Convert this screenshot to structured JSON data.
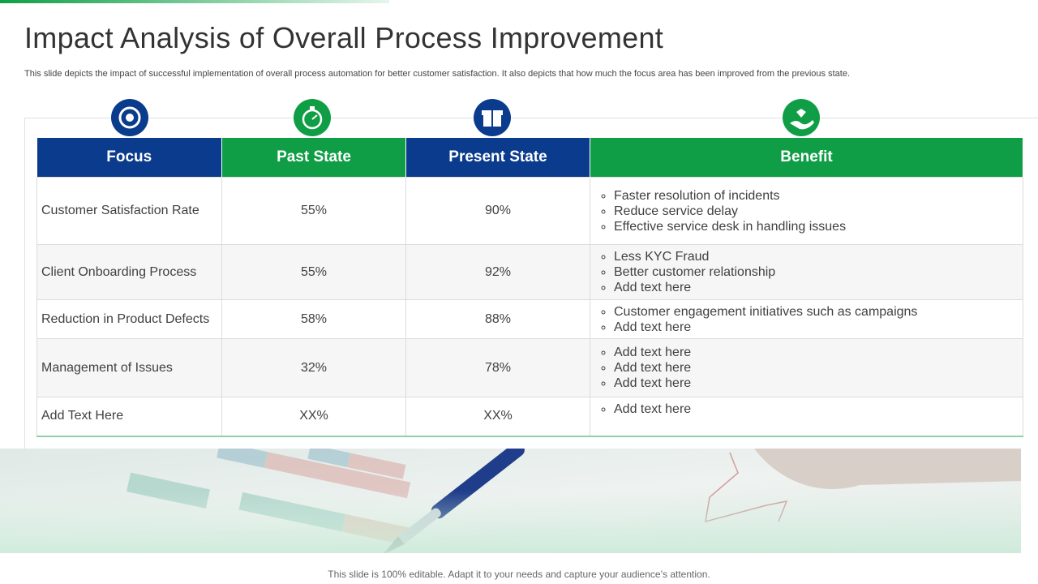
{
  "header": {
    "title": "Impact Analysis of Overall Process Improvement",
    "subtitle": "This slide depicts the impact of successful implementation of overall process automation for better customer satisfaction.  It also depicts that how much the focus area has been improved from the previous state."
  },
  "table": {
    "columns": [
      "Focus",
      "Past State",
      "Present State",
      "Benefit"
    ],
    "rows": [
      {
        "focus": "Customer Satisfaction Rate",
        "past": "55%",
        "present": "90%",
        "benefits": [
          "Faster resolution of incidents",
          "Reduce service delay",
          "Effective service desk in handling issues"
        ]
      },
      {
        "focus": "Client Onboarding Process",
        "past": "55%",
        "present": "92%",
        "benefits": [
          "Less KYC Fraud",
          "Better customer relationship",
          "Add text here"
        ]
      },
      {
        "focus": "Reduction in Product Defects",
        "past": "58%",
        "present": "88%",
        "benefits": [
          "Customer engagement initiatives such as campaigns",
          "Add text here"
        ]
      },
      {
        "focus": "Management of Issues",
        "past": "32%",
        "present": "78%",
        "benefits": [
          "Add text here",
          "Add text here",
          "Add text here"
        ]
      },
      {
        "focus": "Add Text Here",
        "past": "XX%",
        "present": "XX%",
        "benefits": [
          "Add text here"
        ]
      }
    ]
  },
  "footer": {
    "note": "This slide is 100% editable. Adapt it to your needs and capture your audience’s attention."
  }
}
